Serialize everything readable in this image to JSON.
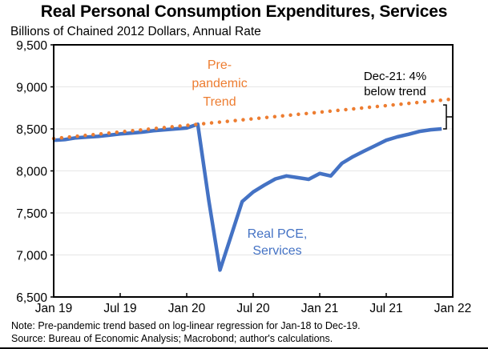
{
  "chart_data": {
    "type": "line",
    "title": "Real Personal Consumption Expenditures, Services",
    "subtitle": "Billions of Chained 2012 Dollars, Annual Rate",
    "xlabel": "",
    "ylabel": "",
    "ylim": [
      6500,
      9500
    ],
    "yticks": [
      6500,
      7000,
      7500,
      8000,
      8500,
      9000,
      9500
    ],
    "ytick_labels": [
      "6,500",
      "7,000",
      "7,500",
      "8,000",
      "8,500",
      "9,000",
      "9,500"
    ],
    "xlim_months": [
      0,
      36
    ],
    "xtick_positions_months": [
      0,
      6,
      12,
      18,
      24,
      30,
      36
    ],
    "xtick_labels": [
      "Jan 19",
      "Jul 19",
      "Jan 20",
      "Jul 20",
      "Jan 21",
      "Jul 21",
      "Jan 22"
    ],
    "grid": "horizontal",
    "legend": "none (inline annotations)",
    "series": [
      {
        "name": "Real PCE, Services",
        "color": "#4472C4",
        "style": "solid",
        "start": "Jan 19",
        "frequency": "monthly",
        "values": [
          8365,
          8372,
          8393,
          8403,
          8410,
          8425,
          8440,
          8450,
          8462,
          8478,
          8490,
          8500,
          8510,
          8555,
          7640,
          6820,
          7225,
          7635,
          7750,
          7830,
          7905,
          7940,
          7920,
          7900,
          7970,
          7940,
          8090,
          8170,
          8235,
          8300,
          8365,
          8405,
          8435,
          8470,
          8490,
          8500
        ]
      },
      {
        "name": "Pre-pandemic Trend",
        "color": "#ED7D31",
        "style": "dotted",
        "start_value_jan19": 8385,
        "end_value_jan22": 8855
      }
    ],
    "annotations": {
      "trend_label": [
        "Pre-",
        "pandemic",
        "Trend"
      ],
      "series_label": [
        "Real PCE,",
        "Services"
      ],
      "gap_label": [
        "Dec-21: 4%",
        "below trend"
      ]
    }
  },
  "notes": {
    "note": "Note: Pre-pandemic trend based on log-linear regression for Jan-18 to Dec-19.",
    "source": "Source: Bureau of Economic Analysis; Macrobond; author's calculations."
  }
}
